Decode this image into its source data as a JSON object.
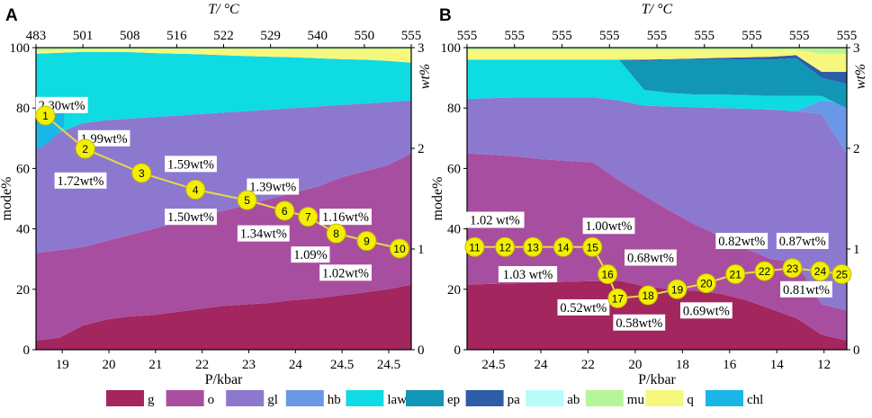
{
  "chart_data": [
    {
      "panel": "A",
      "type": "area",
      "title_top": "T/ °C",
      "top_ticks": [
        "483",
        "501",
        "508",
        "516",
        "522",
        "529",
        "540",
        "550",
        "555"
      ],
      "xlabel": "P/kbar",
      "bottom_ticks": [
        "19",
        "20",
        "21",
        "22",
        "23",
        "24",
        "24.5",
        "24.5"
      ],
      "ylabel": "mode%",
      "ylim": [
        0,
        100
      ],
      "yticks": [
        "0",
        "20",
        "40",
        "60",
        "80",
        "100"
      ],
      "ylabel_right": "wt%",
      "ylim_right": [
        0,
        3
      ],
      "yticks_right": [
        "0",
        "1",
        "2",
        "3"
      ],
      "x": [
        0,
        0.5,
        1,
        1.5,
        2,
        2.5,
        3,
        3.5,
        4,
        4.5,
        5,
        5.5,
        6,
        6.5,
        7,
        7.5,
        8
      ],
      "layers": [
        {
          "name": "g",
          "top": [
            3,
            4,
            8,
            10,
            11,
            11.5,
            12.5,
            13.5,
            14.5,
            15,
            15.5,
            16.5,
            17,
            18,
            19,
            20,
            21.5
          ]
        },
        {
          "name": "o",
          "top": [
            32,
            33,
            34,
            36,
            38,
            40,
            42,
            44,
            46,
            48,
            50,
            52,
            54,
            57,
            59,
            61,
            65
          ]
        },
        {
          "name": "gl",
          "top": [
            67,
            72,
            75,
            76,
            76.5,
            77,
            77.5,
            78,
            78.5,
            79,
            79.5,
            80,
            80.5,
            81,
            81.5,
            82,
            82.5
          ]
        },
        {
          "name": "law",
          "top": [
            98,
            98.3,
            98.6,
            98.6,
            98.5,
            98.2,
            98,
            97.8,
            97.5,
            97.2,
            97,
            96.8,
            96.5,
            96.2,
            96,
            95.6,
            95
          ]
        },
        {
          "name": "q",
          "top": [
            99,
            99.2,
            99.4,
            99.5,
            99.5,
            99.5,
            99.5,
            99.5,
            99.5,
            99.5,
            99.5,
            99.5,
            99.5,
            99.5,
            99.5,
            99.5,
            99.6
          ]
        },
        {
          "name": "mu",
          "top": [
            100,
            100,
            100,
            100,
            100,
            100,
            100,
            100,
            100,
            100,
            100,
            100,
            100,
            100,
            100,
            100,
            100
          ]
        }
      ],
      "chl_patch": [
        [
          0,
          66
        ],
        [
          0,
          79
        ],
        [
          0.6,
          79
        ],
        [
          0.6,
          74
        ],
        [
          0.3,
          69
        ]
      ],
      "points": [
        {
          "id": "1",
          "x": 0.2,
          "y": 77.5
        },
        {
          "id": "2",
          "x": 1.05,
          "y": 66.5
        },
        {
          "id": "3",
          "x": 2.25,
          "y": 58.5
        },
        {
          "id": "4",
          "x": 3.4,
          "y": 53
        },
        {
          "id": "5",
          "x": 4.5,
          "y": 49.5
        },
        {
          "id": "6",
          "x": 5.3,
          "y": 46
        },
        {
          "id": "7",
          "x": 5.8,
          "y": 44
        },
        {
          "id": "8",
          "x": 6.4,
          "y": 38.5
        },
        {
          "id": "9",
          "x": 7.05,
          "y": 36
        },
        {
          "id": "10",
          "x": 7.75,
          "y": 33.5
        }
      ],
      "annotations": [
        {
          "text": "2.30wt%",
          "x": 0.55,
          "y": 81
        },
        {
          "text": "1.99wt%",
          "x": 1.45,
          "y": 70
        },
        {
          "text": "1.72wt%",
          "x": 0.95,
          "y": 56
        },
        {
          "text": "1.59wt%",
          "x": 3.3,
          "y": 61.5
        },
        {
          "text": "1.50wt%",
          "x": 3.3,
          "y": 44
        },
        {
          "text": "1.39wt%",
          "x": 5.05,
          "y": 54
        },
        {
          "text": "1.34wt%",
          "x": 4.85,
          "y": 38.5
        },
        {
          "text": "1.16wt%",
          "x": 6.6,
          "y": 44
        },
        {
          "text": "1.09%",
          "x": 5.85,
          "y": 31.5
        },
        {
          "text": "1.02wt%",
          "x": 6.6,
          "y": 25.5
        }
      ]
    },
    {
      "panel": "B",
      "type": "area",
      "title_top": "T/ °C",
      "top_ticks": [
        "555",
        "555",
        "555",
        "555",
        "555",
        "555",
        "555",
        "555",
        "555"
      ],
      "xlabel": "P/kbar",
      "bottom_ticks": [
        "24.5",
        "24",
        "22",
        "20",
        "18",
        "16",
        "14",
        "12"
      ],
      "ylabel": "mode%",
      "ylim": [
        0,
        100
      ],
      "yticks": [
        "0",
        "20",
        "40",
        "60",
        "80",
        "100"
      ],
      "ylabel_right": "wt%",
      "ylim_right": [
        0,
        3
      ],
      "yticks_right": [
        "0",
        "1",
        "2",
        "3"
      ],
      "x": [
        0,
        1,
        2,
        3,
        4,
        5,
        6,
        7,
        8,
        9,
        10,
        11,
        12,
        13,
        14,
        15
      ],
      "layers": [
        {
          "name": "g",
          "top": [
            21.5,
            21.8,
            22,
            22.2,
            22.5,
            22.7,
            22.9,
            21,
            20,
            19.5,
            18.5,
            16.5,
            13.5,
            10.5,
            5,
            3
          ]
        },
        {
          "name": "o",
          "top": [
            65,
            64.5,
            64,
            63,
            62.5,
            62,
            56,
            51,
            46,
            41.5,
            37.5,
            33.5,
            30,
            29,
            15,
            13
          ]
        },
        {
          "name": "gl",
          "top": [
            83,
            83.3,
            83.5,
            83.5,
            83.5,
            83.5,
            82.5,
            80.8,
            80.5,
            80.3,
            80,
            79.8,
            79.5,
            79,
            78,
            65
          ]
        },
        {
          "name": "hb",
          "top": [
            83,
            83.3,
            83.5,
            83.5,
            83.5,
            83.5,
            82.5,
            80.8,
            80.5,
            80.3,
            80,
            79.8,
            79.5,
            79,
            82.5,
            81.5
          ]
        },
        {
          "name": "law",
          "top": [
            96,
            96,
            96,
            96,
            96,
            96,
            96,
            86,
            85,
            84.5,
            84.5,
            84.3,
            84,
            84,
            84,
            80
          ]
        },
        {
          "name": "ep",
          "top": [
            96,
            96,
            96,
            96,
            96,
            96,
            96,
            95.5,
            96,
            96,
            96,
            96,
            96,
            96.5,
            90,
            88
          ]
        },
        {
          "name": "pa",
          "top": [
            96,
            96,
            96,
            96,
            96,
            96,
            96,
            96,
            96.2,
            96.4,
            96.6,
            96.8,
            97,
            97.5,
            92,
            92
          ]
        },
        {
          "name": "q",
          "top": [
            99.3,
            99.3,
            99.3,
            99.3,
            99.3,
            99.3,
            99.3,
            99.3,
            99.3,
            99.3,
            99.3,
            99.3,
            99.3,
            99.3,
            98,
            98
          ]
        },
        {
          "name": "mu",
          "top": [
            100,
            100,
            100,
            100,
            100,
            100,
            100,
            100,
            100,
            100,
            100,
            100,
            100,
            100,
            100,
            100
          ]
        }
      ],
      "points": [
        {
          "id": "11",
          "x": 0.3,
          "y": 34
        },
        {
          "id": "12",
          "x": 1.5,
          "y": 34
        },
        {
          "id": "13",
          "x": 2.6,
          "y": 34
        },
        {
          "id": "14",
          "x": 3.8,
          "y": 34
        },
        {
          "id": "15",
          "x": 4.95,
          "y": 34
        },
        {
          "id": "16",
          "x": 5.55,
          "y": 25
        },
        {
          "id": "17",
          "x": 5.95,
          "y": 17
        },
        {
          "id": "18",
          "x": 7.15,
          "y": 18
        },
        {
          "id": "19",
          "x": 8.3,
          "y": 20
        },
        {
          "id": "20",
          "x": 9.45,
          "y": 22
        },
        {
          "id": "21",
          "x": 10.6,
          "y": 25
        },
        {
          "id": "22",
          "x": 11.75,
          "y": 26
        },
        {
          "id": "23",
          "x": 12.85,
          "y": 27
        },
        {
          "id": "24",
          "x": 13.95,
          "y": 26
        },
        {
          "id": "25",
          "x": 14.8,
          "y": 25
        }
      ],
      "annotations": [
        {
          "text": "1.02 wt%",
          "x": 1.1,
          "y": 43
        },
        {
          "text": "1.03 wt%",
          "x": 2.4,
          "y": 25
        },
        {
          "text": "1.00wt%",
          "x": 5.6,
          "y": 41
        },
        {
          "text": "0.68wt%",
          "x": 7.25,
          "y": 30.5
        },
        {
          "text": "0.52wt%",
          "x": 4.6,
          "y": 14
        },
        {
          "text": "0.58wt%",
          "x": 6.8,
          "y": 9
        },
        {
          "text": "0.82wt%",
          "x": 10.85,
          "y": 36
        },
        {
          "text": "0.87wt%",
          "x": 13.25,
          "y": 36
        },
        {
          "text": "0.69wt%",
          "x": 9.45,
          "y": 13
        },
        {
          "text": "0.81wt%",
          "x": 13.4,
          "y": 20
        }
      ]
    }
  ],
  "legend": [
    {
      "name": "g",
      "color": "#a3265f"
    },
    {
      "name": "o",
      "color": "#a84ea0"
    },
    {
      "name": "gl",
      "color": "#8c78cf"
    },
    {
      "name": "hb",
      "color": "#6a97e6"
    },
    {
      "name": "law",
      "color": "#0fdbe2"
    },
    {
      "name": "ep",
      "color": "#1296b5"
    },
    {
      "name": "pa",
      "color": "#2c5da6"
    },
    {
      "name": "ab",
      "color": "#b9fafa"
    },
    {
      "name": "mu",
      "color": "#b7f59a"
    },
    {
      "name": "q",
      "color": "#f6f77d"
    },
    {
      "name": "chl",
      "color": "#1ab6e8"
    }
  ],
  "colors": {
    "point_fill": "#f2f000",
    "point_line": "#e6d84a"
  }
}
